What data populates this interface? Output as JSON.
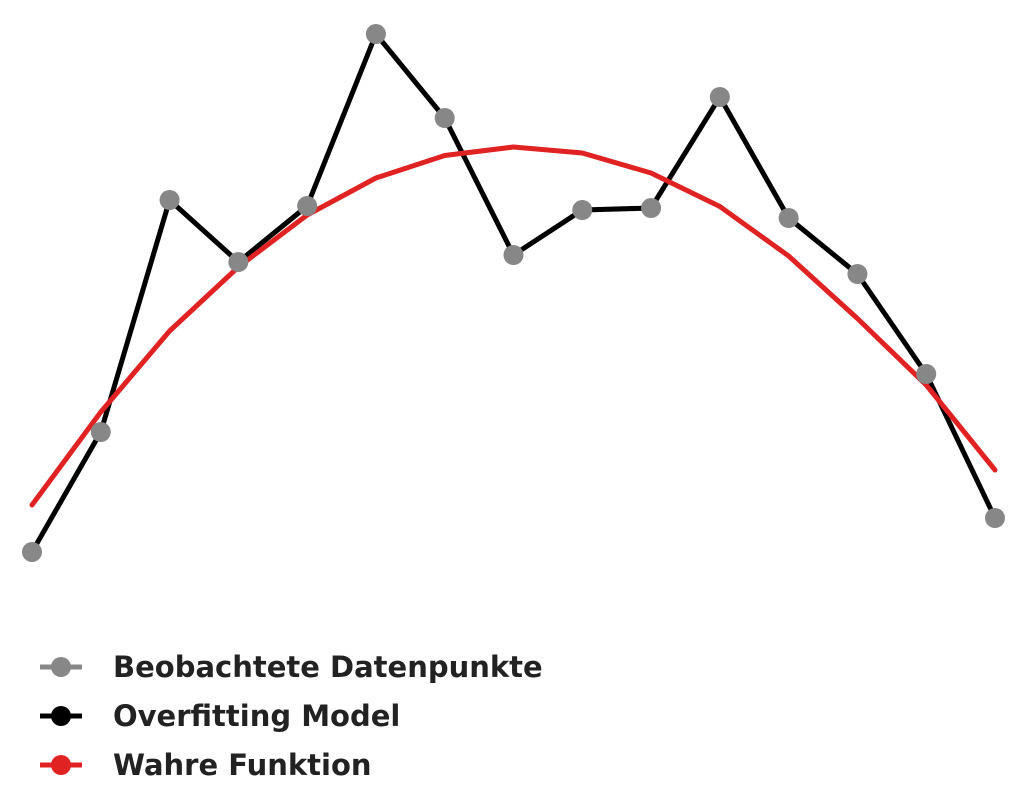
{
  "chart_data": {
    "type": "line",
    "x": [
      0,
      1,
      2,
      3,
      4,
      5,
      6,
      7,
      8,
      9,
      10,
      11,
      12,
      13,
      14
    ],
    "xlim": [
      0,
      14
    ],
    "ylim": [
      0,
      110
    ],
    "grid": false,
    "legend": "bottom-left",
    "series": [
      {
        "name": "Beobachtete Datenpunkte",
        "color": "#878787",
        "markers": true,
        "line": false,
        "values": [
          1.6,
          25.6,
          72,
          59.6,
          70.8,
          105.2,
          88.4,
          61,
          70,
          70.4,
          92.6,
          68.4,
          57.2,
          37.2,
          8.4
        ]
      },
      {
        "name": "Overfitting Model",
        "color": "#000000",
        "markers": false,
        "line": true,
        "values": [
          1.6,
          25.6,
          72,
          59.6,
          70.8,
          105.2,
          88.4,
          61,
          70,
          70.4,
          92.6,
          68.4,
          57.2,
          37.2,
          8.4
        ]
      },
      {
        "name": "Wahre Funktion",
        "color": "#e02222",
        "markers": false,
        "line": true,
        "values": [
          11,
          29.6,
          45.8,
          58.6,
          69,
          76.4,
          80.9,
          82.6,
          81.4,
          77.4,
          70.7,
          60.8,
          48.3,
          35,
          18
        ]
      }
    ]
  }
}
